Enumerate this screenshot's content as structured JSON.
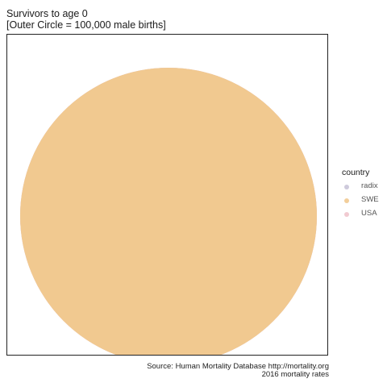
{
  "chart_data": {
    "type": "pie",
    "title": "Survivors to age 0",
    "subtitle": "[Outer Circle = 100,000 male births]",
    "outer_circle_value": 100000,
    "series": [
      {
        "name": "radix",
        "value": 100000,
        "color": "#c9c4d8"
      },
      {
        "name": "SWE",
        "value": 100000,
        "color": "#f1c990"
      },
      {
        "name": "USA",
        "value": 100000,
        "color": "#f0c4cc"
      }
    ],
    "visible_fill_color": "#f1c990",
    "legend": {
      "title": "country",
      "position": "right"
    },
    "caption": [
      "Source: Human Mortality Database http://mortality.org",
      "2016 mortality rates"
    ]
  }
}
